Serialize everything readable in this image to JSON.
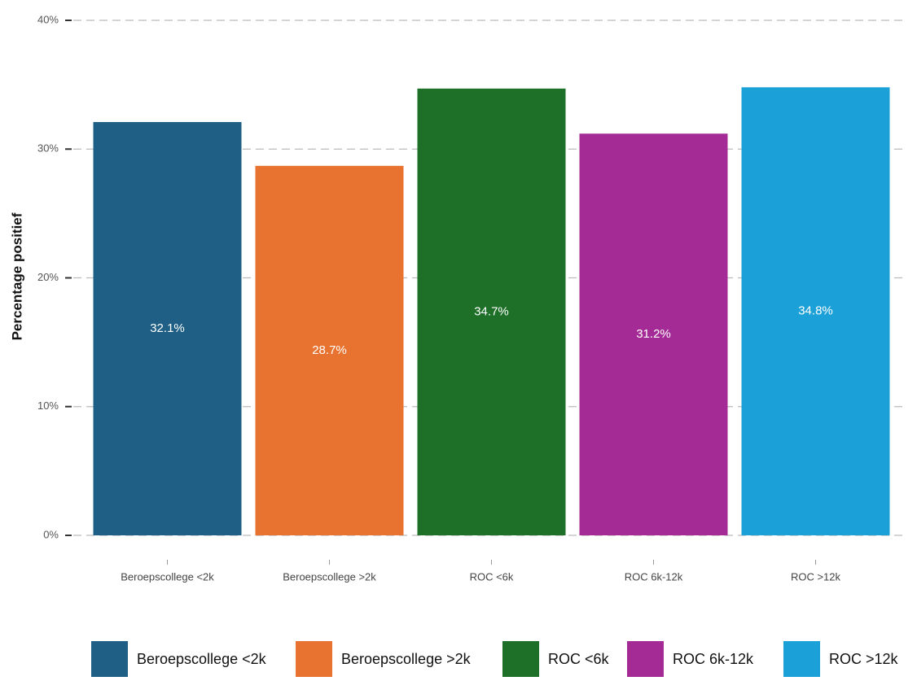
{
  "chart_data": {
    "type": "bar",
    "y_label": "Percentage positief",
    "categories": [
      "Beroepscollege <2k",
      "Beroepscollege >2k",
      "ROC <6k",
      "ROC 6k-12k",
      "ROC >12k"
    ],
    "values": [
      32.1,
      28.7,
      34.7,
      31.2,
      34.8
    ],
    "value_labels": [
      "32.1%",
      "28.7%",
      "34.7%",
      "31.2%",
      "34.8%"
    ],
    "colors": [
      "#1f5f85",
      "#e87330",
      "#1e7028",
      "#a42a96",
      "#1ba0d8"
    ],
    "ylim": [
      0,
      40
    ],
    "yticks": [
      {
        "value": 0,
        "label": "0%"
      },
      {
        "value": 10,
        "label": "10%"
      },
      {
        "value": 20,
        "label": "20%"
      },
      {
        "value": 30,
        "label": "30%"
      },
      {
        "value": 40,
        "label": "40%"
      }
    ],
    "grid": true
  }
}
